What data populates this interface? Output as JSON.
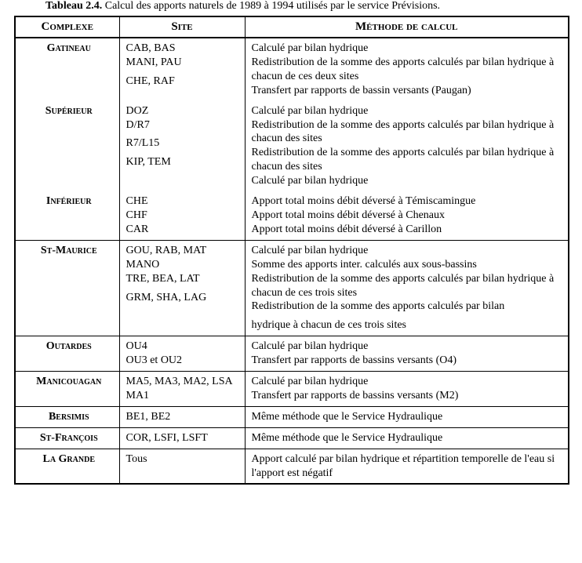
{
  "caption": {
    "label": "Tableau 2.4.",
    "text": "Calcul des apports naturels de 1989 à 1994 utilisés par le service Prévisions."
  },
  "headers": {
    "complexe": "Complexe",
    "site": "Site",
    "methode": "Méthode de calcul"
  },
  "unit1": {
    "gatineau": {
      "name": "Gatineau",
      "site1": "CAB, BAS",
      "site2": "MANI, PAU",
      "site3": "CHE, RAF",
      "m1": "Calculé par bilan hydrique",
      "m2": "Redistribution de la somme des apports calculés par bilan hydrique à chacun de ces deux sites",
      "m3": "Transfert par rapports de bassin versants (Paugan)"
    },
    "superieur": {
      "name": "Supérieur",
      "site1": "DOZ",
      "site2": "D/R7",
      "site3": "R7/L15",
      "site4": "KIP, TEM",
      "m1": "Calculé par bilan hydrique",
      "m2": "Redistribution de la somme des apports calculés par bilan hydrique à chacun des sites",
      "m3": "Redistribution de la somme des apports calculés par bilan hydrique à chacun des sites",
      "m4": "Calculé par bilan hydrique"
    },
    "inferieur": {
      "name": "Inférieur",
      "site1": "CHE",
      "site2": "CHF",
      "site3": "CAR",
      "m1": "Apport total moins débit déversé à Témiscamingue",
      "m2": "Apport total moins débit déversé à Chenaux",
      "m3": "Apport total moins débit déversé à Carillon"
    }
  },
  "stmaurice": {
    "name": "St-Maurice",
    "site1": "GOU, RAB, MAT",
    "site2": "MANO",
    "site3": "TRE, BEA, LAT",
    "site4": "GRM, SHA, LAG",
    "m1": "Calculé par bilan hydrique",
    "m2": "Somme des apports inter. calculés aux sous-bassins",
    "m3": "Redistribution de la somme des apports calculés par bilan hydrique à chacun de ces trois sites",
    "m4a": "Redistribution de la somme des apports calculés par bilan",
    "m4b": "hydrique à chacun de ces trois sites"
  },
  "outardes": {
    "name": "Outardes",
    "site1": "OU4",
    "site2": "OU3 et OU2",
    "m1": "Calculé par bilan hydrique",
    "m2": "Transfert par rapports de bassins versants (O4)"
  },
  "manicouagan": {
    "name": "Manicouagan",
    "site1": "MA5, MA3, MA2, LSA",
    "site2": "MA1",
    "m1": "Calculé par bilan hydrique",
    "m2": "Transfert par rapports de bassins versants (M2)"
  },
  "bersimis": {
    "name": "Bersimis",
    "site": "BE1, BE2",
    "m": "Même méthode que le Service Hydraulique"
  },
  "stfrancois": {
    "name": "St-François",
    "site": "COR, LSFI, LSFT",
    "m": "Même méthode que le Service Hydraulique"
  },
  "lagrande": {
    "name": "La Grande",
    "site": "Tous",
    "m": "Apport calculé par bilan hydrique et répartition temporelle de l'eau si l'apport est négatif"
  }
}
